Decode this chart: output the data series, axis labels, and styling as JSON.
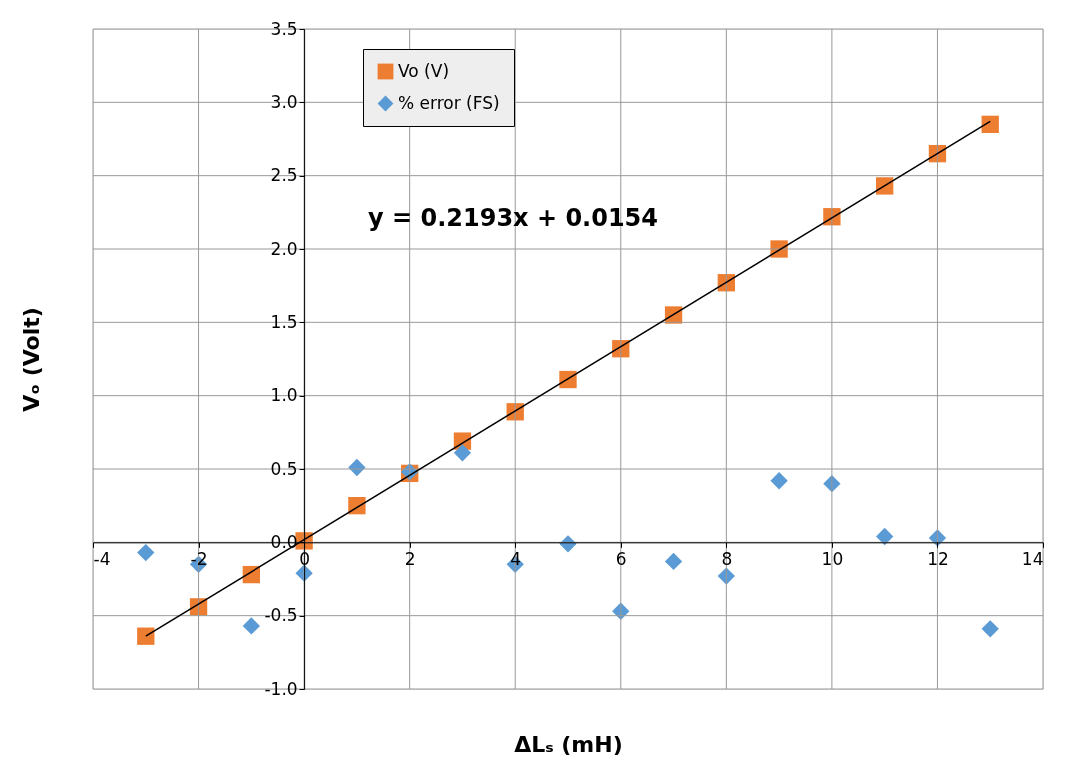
{
  "chart_data": {
    "type": "scatter",
    "xlabel": "ΔLₛ (mH)",
    "ylabel": "Vₒ (Volt)",
    "x": [
      -3,
      -2,
      -1,
      0,
      1,
      2,
      3,
      4,
      5,
      6,
      7,
      8,
      9,
      10,
      11,
      12,
      13
    ],
    "series": [
      {
        "name": "Vo (V)",
        "color": "#ed7d31",
        "marker": "square",
        "values": [
          -0.64,
          -0.44,
          -0.22,
          0.01,
          0.25,
          0.47,
          0.69,
          0.89,
          1.11,
          1.32,
          1.55,
          1.77,
          2.0,
          2.22,
          2.43,
          2.65,
          2.85
        ]
      },
      {
        "name": "% error (FS)",
        "color": "#5b9bd5",
        "marker": "diamond",
        "values": [
          -0.07,
          -0.15,
          -0.57,
          -0.21,
          0.51,
          0.48,
          0.61,
          -0.15,
          -0.01,
          -0.47,
          -0.13,
          -0.23,
          0.42,
          0.4,
          0.04,
          0.03,
          -0.59
        ]
      },
      {
        "type": "line",
        "color": "#000000",
        "x": [
          -3,
          13
        ],
        "values": [
          -0.64,
          2.87
        ]
      }
    ],
    "annotations": [
      "y = 0.2193x + 0.0154"
    ],
    "xlim": [
      -4,
      14
    ],
    "xticks": [
      -4,
      -2,
      0,
      2,
      4,
      6,
      8,
      10,
      12,
      14
    ],
    "ylim": [
      -1.0,
      3.5
    ],
    "yticks": [
      {
        "value": -1.0,
        "label": "-1.0"
      },
      -0.5,
      {
        "value": 0,
        "label": "0.0"
      },
      0.5,
      {
        "value": 1,
        "label": "1.0"
      },
      1.5,
      {
        "value": 2,
        "label": "2.0"
      },
      2.5,
      {
        "value": 3,
        "label": "3.0"
      },
      3.5
    ],
    "grid": true,
    "legend": "top left"
  }
}
